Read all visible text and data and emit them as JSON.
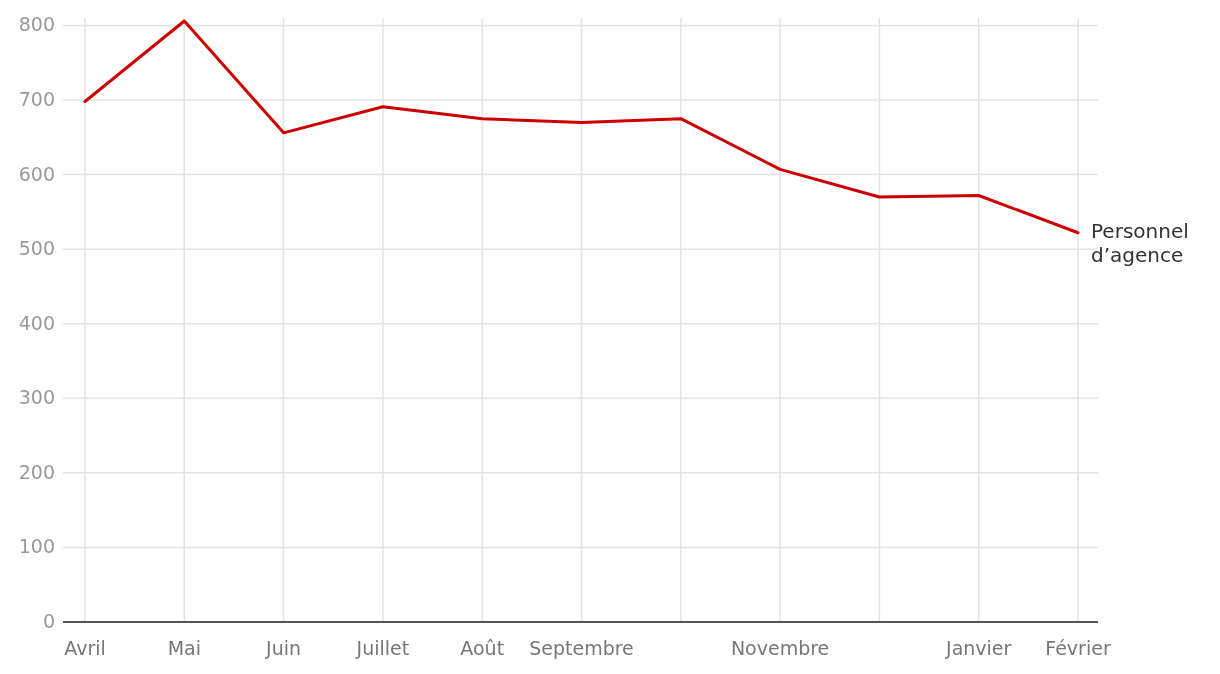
{
  "chart_data": {
    "type": "line",
    "categories": [
      "Avril",
      "Mai",
      "Juin",
      "Juillet",
      "Août",
      "Septembre",
      null,
      "Novembre",
      null,
      "Janvier",
      "Février"
    ],
    "series": [
      {
        "name": "Personnel d’agence",
        "color": "#cc0000",
        "values": [
          698,
          806,
          656,
          691,
          675,
          670,
          675,
          607,
          570,
          572,
          522
        ]
      }
    ],
    "ylim": [
      0,
      810
    ],
    "yticks": [
      0,
      100,
      200,
      300,
      400,
      500,
      600,
      700,
      800
    ],
    "grid": true,
    "marker": "none",
    "line_style": "solid"
  }
}
